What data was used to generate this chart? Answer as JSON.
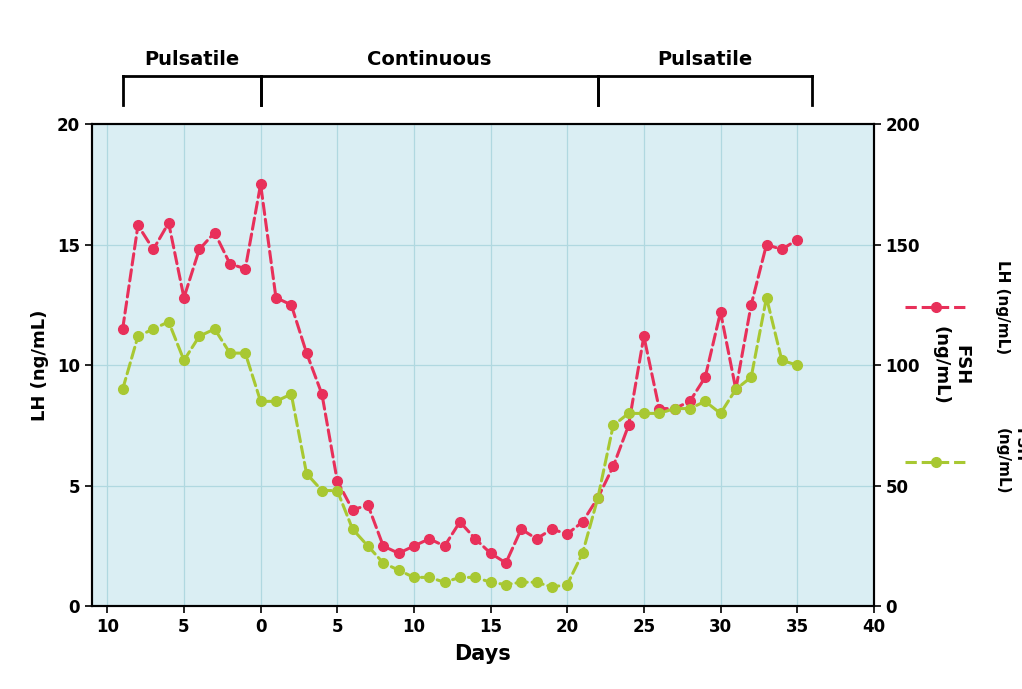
{
  "background_color": "#daeef3",
  "lh_color": "#e8305a",
  "fsh_color": "#a8c832",
  "lh_label": "LH (ng/mL)",
  "fsh_label": "FSH\n(ng/mL)",
  "xlabel": "Days",
  "ylim_lh": [
    0,
    20
  ],
  "ylim_fsh": [
    0,
    200
  ],
  "xlim": [
    -11,
    40
  ],
  "lh_x": [
    -9,
    -8,
    -7,
    -6,
    -5,
    -4,
    -3,
    -2,
    -1,
    0,
    1,
    2,
    3,
    4,
    5,
    6,
    7,
    8,
    9,
    10,
    11,
    12,
    13,
    14,
    15,
    16,
    17,
    18,
    19,
    20,
    21,
    22,
    23,
    24,
    25,
    26,
    27,
    28,
    29,
    30,
    31,
    32,
    33,
    34,
    35
  ],
  "lh_y": [
    11.5,
    15.8,
    14.8,
    15.9,
    12.8,
    14.8,
    15.5,
    14.2,
    14.0,
    17.5,
    12.8,
    12.5,
    10.5,
    8.8,
    5.2,
    4.0,
    4.2,
    2.5,
    2.2,
    2.5,
    2.8,
    2.5,
    3.5,
    2.8,
    2.2,
    1.8,
    3.2,
    2.8,
    3.2,
    3.0,
    3.5,
    4.5,
    5.8,
    7.5,
    11.2,
    8.2,
    8.2,
    8.5,
    9.5,
    12.2,
    9.0,
    12.5,
    15.0,
    14.8,
    15.2
  ],
  "fsh_x": [
    -9,
    -8,
    -7,
    -6,
    -5,
    -4,
    -3,
    -2,
    -1,
    0,
    1,
    2,
    3,
    4,
    5,
    6,
    7,
    8,
    9,
    10,
    11,
    12,
    13,
    14,
    15,
    16,
    17,
    18,
    19,
    20,
    21,
    22,
    23,
    24,
    25,
    26,
    27,
    28,
    29,
    30,
    31,
    32,
    33,
    34,
    35
  ],
  "fsh_y": [
    90,
    112,
    115,
    118,
    102,
    112,
    115,
    105,
    105,
    85,
    85,
    88,
    55,
    48,
    48,
    32,
    25,
    18,
    15,
    12,
    12,
    10,
    12,
    12,
    10,
    9,
    10,
    10,
    8,
    9,
    22,
    45,
    75,
    80,
    80,
    80,
    82,
    82,
    85,
    80,
    90,
    95,
    128,
    102,
    100
  ],
  "xticks": [
    -10,
    -5,
    0,
    5,
    10,
    15,
    20,
    25,
    30,
    35,
    40
  ],
  "yticks_lh": [
    0,
    5,
    10,
    15,
    20
  ],
  "yticks_fsh": [
    0,
    50,
    100,
    150,
    200
  ],
  "grid_color": "#b0d8e0",
  "puls1_x1": -9,
  "puls1_x2": 0,
  "cont_x1": 0,
  "cont_x2": 22,
  "puls2_x1": 22,
  "puls2_x2": 36,
  "label_pulsatile1": "Pulsatile",
  "label_continuous": "Continuous",
  "label_pulsatile2": "Pulsatile"
}
